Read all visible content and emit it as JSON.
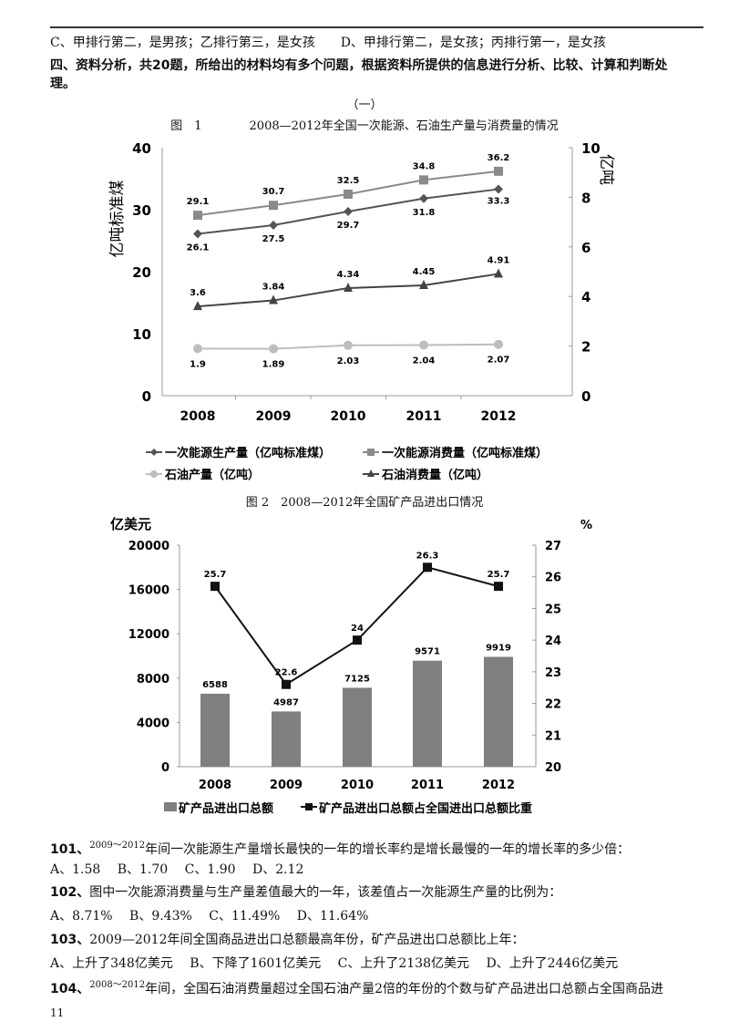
{
  "top_line": "C、甲排行第二，是男孩；乙排行第三，是女孩　　D、甲排行第二，是女孩；丙排行第一，是女孩",
  "section_heading": "四、资料分析，共20题，所给出的材料均有多个问题，根据资料所提供的信息进行分析、比较、计算和判断处",
  "section_heading_cont": "理。",
  "part_label": "（一）",
  "chart_data": [
    {
      "type": "line",
      "title": "图　1　　　　2008—2012年全国一次能源、石油生产量与消费量的情况",
      "categories": [
        "2008",
        "2009",
        "2010",
        "2011",
        "2012"
      ],
      "ylabel": "亿吨标准煤",
      "y2label": "亿吨",
      "ylim": [
        0,
        40
      ],
      "y2lim": [
        0,
        10
      ],
      "yticks": [
        "0",
        "10",
        "20",
        "30",
        "40"
      ],
      "y2ticks": [
        "0",
        "2",
        "4",
        "6",
        "8",
        "10"
      ],
      "legend_position": "bottom",
      "series": [
        {
          "name": "一次能源生产量（亿吨标准煤）",
          "axis": "left",
          "marker": "diamond",
          "color": "#555555",
          "values": [
            26.1,
            27.5,
            29.7,
            31.8,
            33.3
          ],
          "labels": [
            "26.1",
            "27.5",
            "29.7",
            "31.8",
            "33.3"
          ]
        },
        {
          "name": "一次能源消费量（亿吨标准煤）",
          "axis": "left",
          "marker": "square",
          "color": "#8a8a8a",
          "values": [
            29.1,
            30.7,
            32.5,
            34.8,
            36.2
          ],
          "labels": [
            "29.1",
            "30.7",
            "32.5",
            "34.8",
            "36.2"
          ]
        },
        {
          "name": "石油产量（亿吨）",
          "axis": "right",
          "marker": "circle",
          "color": "#bdbdbd",
          "values": [
            1.9,
            1.89,
            2.03,
            2.04,
            2.07
          ],
          "labels": [
            "1.9",
            "1.89",
            "2.03",
            "2.04",
            "2.07"
          ]
        },
        {
          "name": "石油消费量（亿吨）",
          "axis": "right",
          "marker": "triangle",
          "color": "#444444",
          "values": [
            3.6,
            3.84,
            4.34,
            4.45,
            4.91
          ],
          "labels": [
            "3.6",
            "3.84",
            "4.34",
            "4.45",
            "4.91"
          ]
        }
      ]
    },
    {
      "type": "bar",
      "title": "图 2　2008—2012年全国矿产品进出口情况",
      "categories": [
        "2008",
        "2009",
        "2010",
        "2011",
        "2012"
      ],
      "ylabel": "亿美元",
      "y2label": "%",
      "ylim": [
        0,
        20000
      ],
      "y2lim": [
        20,
        27
      ],
      "yticks": [
        "0",
        "4000",
        "8000",
        "12000",
        "16000",
        "20000"
      ],
      "y2ticks": [
        "20",
        "21",
        "22",
        "23",
        "24",
        "25",
        "26",
        "27"
      ],
      "legend_position": "bottom",
      "series": [
        {
          "name": "矿产品进出口总额",
          "type": "bar",
          "axis": "left",
          "color": "#7f7f7f",
          "values": [
            6588,
            4987,
            7125,
            9571,
            9919
          ],
          "labels": [
            "6588",
            "4987",
            "7125",
            "9571",
            "9919"
          ]
        },
        {
          "name": "矿产品进出口总额占全国进出口总额比重",
          "type": "line",
          "axis": "right",
          "marker": "square",
          "color": "#111111",
          "values": [
            25.7,
            22.6,
            24,
            26.3,
            25.7
          ],
          "labels": [
            "25.7",
            "22.6",
            "24",
            "26.3",
            "25.7"
          ]
        }
      ]
    }
  ],
  "questions": [
    {
      "num": "101、",
      "range": "2009～2012",
      "text": "年间一次能源生产量增长最快的一年的增长率约是增长最慢的一年的增长率的多少倍：",
      "options": "A、1.58　 B、1.70　 C、1.90　 D、2.12"
    },
    {
      "num": "102、",
      "range": "",
      "text": "图中一次能源消费量与生产量差值最大的一年，该差值占一次能源生产量的比例为：",
      "options": "A、8.71%　 B、9.43%　 C、11.49%　 D、11.64%"
    },
    {
      "num": "103、",
      "range": "",
      "text": "2009—2012年间全国商品进出口总额最高年份，矿产品进出口总额比上年：",
      "options": "A、上升了348亿美元　 B、下降了1601亿美元　 C、上升了2138亿美元　 D、上升了2446亿美元"
    },
    {
      "num": "104、",
      "range": "2008～2012",
      "text": "年间，全国石油消费量超过全国石油产量2倍的年份的个数与矿产品进出口总额占全国商品进",
      "options": ""
    }
  ],
  "page_number": "11"
}
